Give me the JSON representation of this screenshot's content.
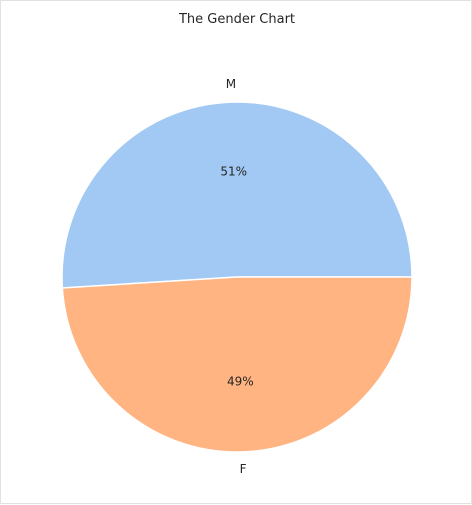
{
  "chart_data": {
    "type": "pie",
    "title": "The Gender Chart",
    "categories": [
      "M",
      "F"
    ],
    "values": [
      51,
      49
    ],
    "value_labels": [
      "51%",
      "49%"
    ],
    "colors": [
      "#a1c9f4",
      "#ffb482"
    ],
    "start_angle_deg": 0,
    "direction": "counterclockwise",
    "legend": "none"
  }
}
